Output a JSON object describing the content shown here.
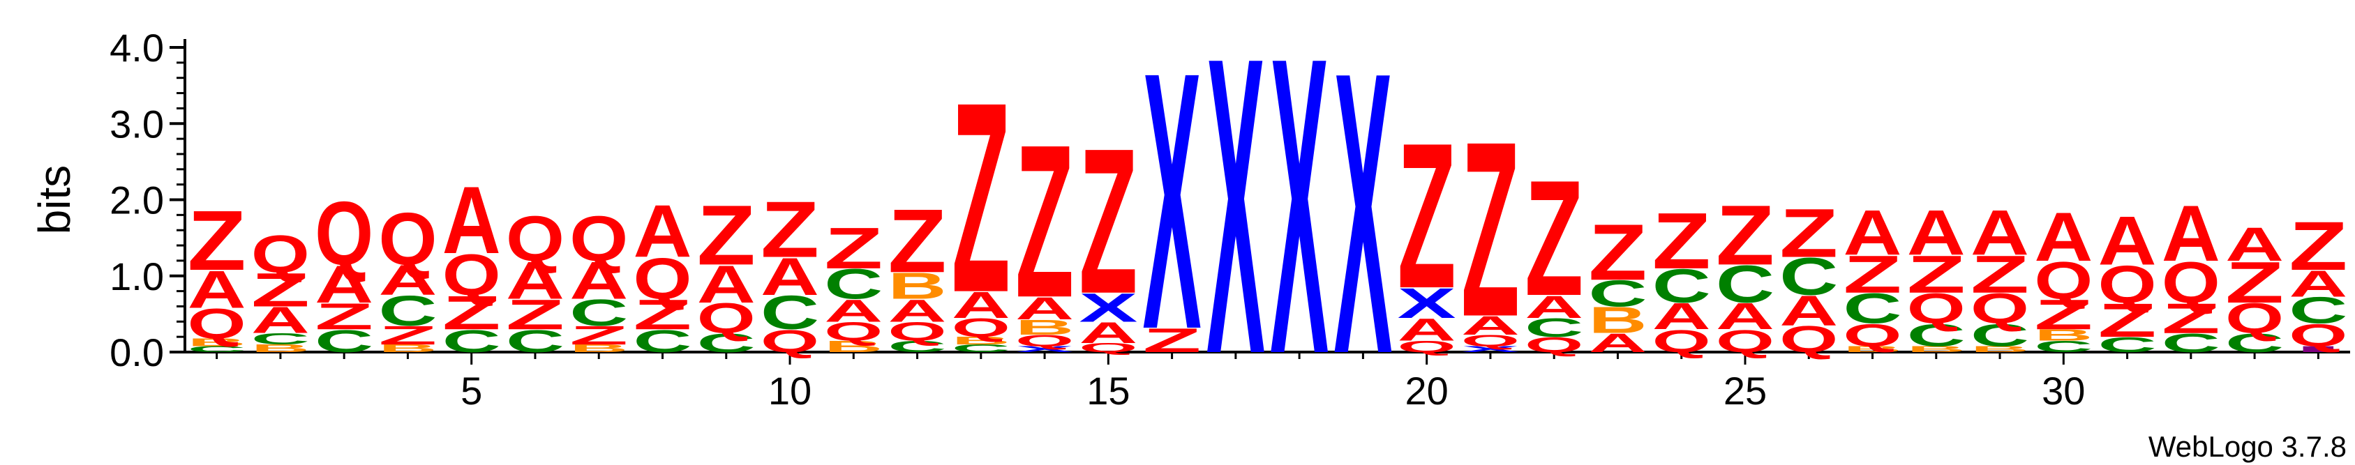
{
  "chart_data": {
    "type": "sequence-logo",
    "ylabel": "bits",
    "ylim": [
      0,
      4.0
    ],
    "y_ticks": [
      "0.0",
      "1.0",
      "2.0",
      "3.0",
      "4.0"
    ],
    "x_ticks": [
      5,
      10,
      15,
      20,
      25,
      30
    ],
    "x_range": [
      1,
      34
    ],
    "credit": "WebLogo 3.7.8",
    "colors": {
      "Z": "#ff0000",
      "Q": "#ff0000",
      "A": "#ff0000",
      "C": "#008000",
      "B": "#ff8c00",
      "X": "#0000ff",
      "I": "#800080"
    },
    "positions": [
      {
        "pos": 1,
        "stack": [
          {
            "l": "C",
            "v": 0.08
          },
          {
            "l": "B",
            "v": 0.1
          },
          {
            "l": "Q",
            "v": 0.4
          },
          {
            "l": "A",
            "v": 0.5
          },
          {
            "l": "Z",
            "v": 0.8
          }
        ]
      },
      {
        "pos": 2,
        "stack": [
          {
            "l": "B",
            "v": 0.1
          },
          {
            "l": "C",
            "v": 0.15
          },
          {
            "l": "A",
            "v": 0.35
          },
          {
            "l": "Z",
            "v": 0.45
          },
          {
            "l": "Q",
            "v": 0.5
          }
        ]
      },
      {
        "pos": 3,
        "stack": [
          {
            "l": "C",
            "v": 0.3
          },
          {
            "l": "Z",
            "v": 0.35
          },
          {
            "l": "A",
            "v": 0.5
          },
          {
            "l": "Q",
            "v": 0.85
          }
        ]
      },
      {
        "pos": 4,
        "stack": [
          {
            "l": "B",
            "v": 0.1
          },
          {
            "l": "Z",
            "v": 0.25
          },
          {
            "l": "C",
            "v": 0.4
          },
          {
            "l": "A",
            "v": 0.4
          },
          {
            "l": "Q",
            "v": 0.7
          }
        ]
      },
      {
        "pos": 5,
        "stack": [
          {
            "l": "C",
            "v": 0.3
          },
          {
            "l": "Z",
            "v": 0.45
          },
          {
            "l": "Q",
            "v": 0.55
          },
          {
            "l": "A",
            "v": 0.9
          }
        ]
      },
      {
        "pos": 6,
        "stack": [
          {
            "l": "C",
            "v": 0.3
          },
          {
            "l": "Z",
            "v": 0.4
          },
          {
            "l": "A",
            "v": 0.5
          },
          {
            "l": "Q",
            "v": 0.6
          }
        ]
      },
      {
        "pos": 7,
        "stack": [
          {
            "l": "B",
            "v": 0.1
          },
          {
            "l": "Z",
            "v": 0.25
          },
          {
            "l": "C",
            "v": 0.35
          },
          {
            "l": "A",
            "v": 0.5
          },
          {
            "l": "Q",
            "v": 0.6
          }
        ]
      },
      {
        "pos": 8,
        "stack": [
          {
            "l": "C",
            "v": 0.3
          },
          {
            "l": "Z",
            "v": 0.4
          },
          {
            "l": "Q",
            "v": 0.55
          },
          {
            "l": "A",
            "v": 0.7
          }
        ]
      },
      {
        "pos": 9,
        "stack": [
          {
            "l": "C",
            "v": 0.25
          },
          {
            "l": "Q",
            "v": 0.4
          },
          {
            "l": "A",
            "v": 0.5
          },
          {
            "l": "Z",
            "v": 0.8
          }
        ]
      },
      {
        "pos": 10,
        "stack": [
          {
            "l": "Q",
            "v": 0.3
          },
          {
            "l": "C",
            "v": 0.45
          },
          {
            "l": "A",
            "v": 0.5
          },
          {
            "l": "Z",
            "v": 0.75
          }
        ]
      },
      {
        "pos": 11,
        "stack": [
          {
            "l": "B",
            "v": 0.15
          },
          {
            "l": "Q",
            "v": 0.25
          },
          {
            "l": "A",
            "v": 0.3
          },
          {
            "l": "C",
            "v": 0.4
          },
          {
            "l": "Z",
            "v": 0.55
          }
        ]
      },
      {
        "pos": 12,
        "stack": [
          {
            "l": "C",
            "v": 0.15
          },
          {
            "l": "Q",
            "v": 0.25
          },
          {
            "l": "A",
            "v": 0.3
          },
          {
            "l": "B",
            "v": 0.35
          },
          {
            "l": "Z",
            "v": 0.85
          }
        ]
      },
      {
        "pos": 13,
        "stack": [
          {
            "l": "C",
            "v": 0.1
          },
          {
            "l": "B",
            "v": 0.1
          },
          {
            "l": "Q",
            "v": 0.25
          },
          {
            "l": "A",
            "v": 0.35
          },
          {
            "l": "Z",
            "v": 2.55
          }
        ]
      },
      {
        "pos": 14,
        "stack": [
          {
            "l": "X",
            "v": 0.08
          },
          {
            "l": "Q",
            "v": 0.15
          },
          {
            "l": "B",
            "v": 0.2
          },
          {
            "l": "A",
            "v": 0.3
          },
          {
            "l": "Z",
            "v": 2.05
          }
        ]
      },
      {
        "pos": 15,
        "stack": [
          {
            "l": "Q",
            "v": 0.12
          },
          {
            "l": "A",
            "v": 0.28
          },
          {
            "l": "X",
            "v": 0.38
          },
          {
            "l": "Z",
            "v": 1.95
          }
        ]
      },
      {
        "pos": 16,
        "stack": [
          {
            "l": "Z",
            "v": 0.32
          },
          {
            "l": "X",
            "v": 3.45
          }
        ]
      },
      {
        "pos": 17,
        "stack": [
          {
            "l": "X",
            "v": 3.98
          }
        ]
      },
      {
        "pos": 18,
        "stack": [
          {
            "l": "X",
            "v": 3.98
          }
        ]
      },
      {
        "pos": 19,
        "stack": [
          {
            "l": "X",
            "v": 3.78
          }
        ]
      },
      {
        "pos": 20,
        "stack": [
          {
            "l": "Q",
            "v": 0.15
          },
          {
            "l": "A",
            "v": 0.3
          },
          {
            "l": "X",
            "v": 0.4
          },
          {
            "l": "Z",
            "v": 1.95
          }
        ]
      },
      {
        "pos": 21,
        "stack": [
          {
            "l": "X",
            "v": 0.08
          },
          {
            "l": "Q",
            "v": 0.15
          },
          {
            "l": "A",
            "v": 0.25
          },
          {
            "l": "Z",
            "v": 2.35
          }
        ]
      },
      {
        "pos": 22,
        "stack": [
          {
            "l": "Q",
            "v": 0.2
          },
          {
            "l": "C",
            "v": 0.25
          },
          {
            "l": "A",
            "v": 0.3
          },
          {
            "l": "Z",
            "v": 1.55
          }
        ]
      },
      {
        "pos": 23,
        "stack": [
          {
            "l": "A",
            "v": 0.25
          },
          {
            "l": "B",
            "v": 0.35
          },
          {
            "l": "C",
            "v": 0.35
          },
          {
            "l": "Z",
            "v": 0.75
          }
        ]
      },
      {
        "pos": 24,
        "stack": [
          {
            "l": "Q",
            "v": 0.3
          },
          {
            "l": "A",
            "v": 0.35
          },
          {
            "l": "C",
            "v": 0.45
          },
          {
            "l": "Z",
            "v": 0.75
          }
        ]
      },
      {
        "pos": 25,
        "stack": [
          {
            "l": "Q",
            "v": 0.3
          },
          {
            "l": "A",
            "v": 0.35
          },
          {
            "l": "C",
            "v": 0.5
          },
          {
            "l": "Z",
            "v": 0.8
          }
        ]
      },
      {
        "pos": 26,
        "stack": [
          {
            "l": "Q",
            "v": 0.35
          },
          {
            "l": "A",
            "v": 0.4
          },
          {
            "l": "C",
            "v": 0.5
          },
          {
            "l": "Z",
            "v": 0.65
          }
        ]
      },
      {
        "pos": 27,
        "stack": [
          {
            "l": "B",
            "v": 0.08
          },
          {
            "l": "Q",
            "v": 0.3
          },
          {
            "l": "C",
            "v": 0.4
          },
          {
            "l": "Z",
            "v": 0.5
          },
          {
            "l": "A",
            "v": 0.6
          }
        ]
      },
      {
        "pos": 28,
        "stack": [
          {
            "l": "B",
            "v": 0.08
          },
          {
            "l": "C",
            "v": 0.3
          },
          {
            "l": "Q",
            "v": 0.4
          },
          {
            "l": "Z",
            "v": 0.5
          },
          {
            "l": "A",
            "v": 0.6
          }
        ]
      },
      {
        "pos": 29,
        "stack": [
          {
            "l": "B",
            "v": 0.08
          },
          {
            "l": "C",
            "v": 0.3
          },
          {
            "l": "Q",
            "v": 0.4
          },
          {
            "l": "Z",
            "v": 0.5
          },
          {
            "l": "A",
            "v": 0.6
          }
        ]
      },
      {
        "pos": 30,
        "stack": [
          {
            "l": "C",
            "v": 0.15
          },
          {
            "l": "B",
            "v": 0.15
          },
          {
            "l": "Z",
            "v": 0.4
          },
          {
            "l": "Q",
            "v": 0.5
          },
          {
            "l": "A",
            "v": 0.65
          }
        ]
      },
      {
        "pos": 31,
        "stack": [
          {
            "l": "C",
            "v": 0.2
          },
          {
            "l": "Z",
            "v": 0.45
          },
          {
            "l": "Q",
            "v": 0.5
          },
          {
            "l": "A",
            "v": 0.65
          }
        ]
      },
      {
        "pos": 32,
        "stack": [
          {
            "l": "C",
            "v": 0.25
          },
          {
            "l": "Z",
            "v": 0.4
          },
          {
            "l": "Q",
            "v": 0.55
          },
          {
            "l": "A",
            "v": 0.75
          }
        ]
      },
      {
        "pos": 33,
        "stack": [
          {
            "l": "C",
            "v": 0.25
          },
          {
            "l": "Q",
            "v": 0.4
          },
          {
            "l": "Z",
            "v": 0.55
          },
          {
            "l": "A",
            "v": 0.45
          }
        ]
      },
      {
        "pos": 34,
        "stack": [
          {
            "l": "I",
            "v": 0.08
          },
          {
            "l": "Q",
            "v": 0.3
          },
          {
            "l": "C",
            "v": 0.35
          },
          {
            "l": "A",
            "v": 0.35
          },
          {
            "l": "Z",
            "v": 0.65
          }
        ]
      }
    ]
  }
}
